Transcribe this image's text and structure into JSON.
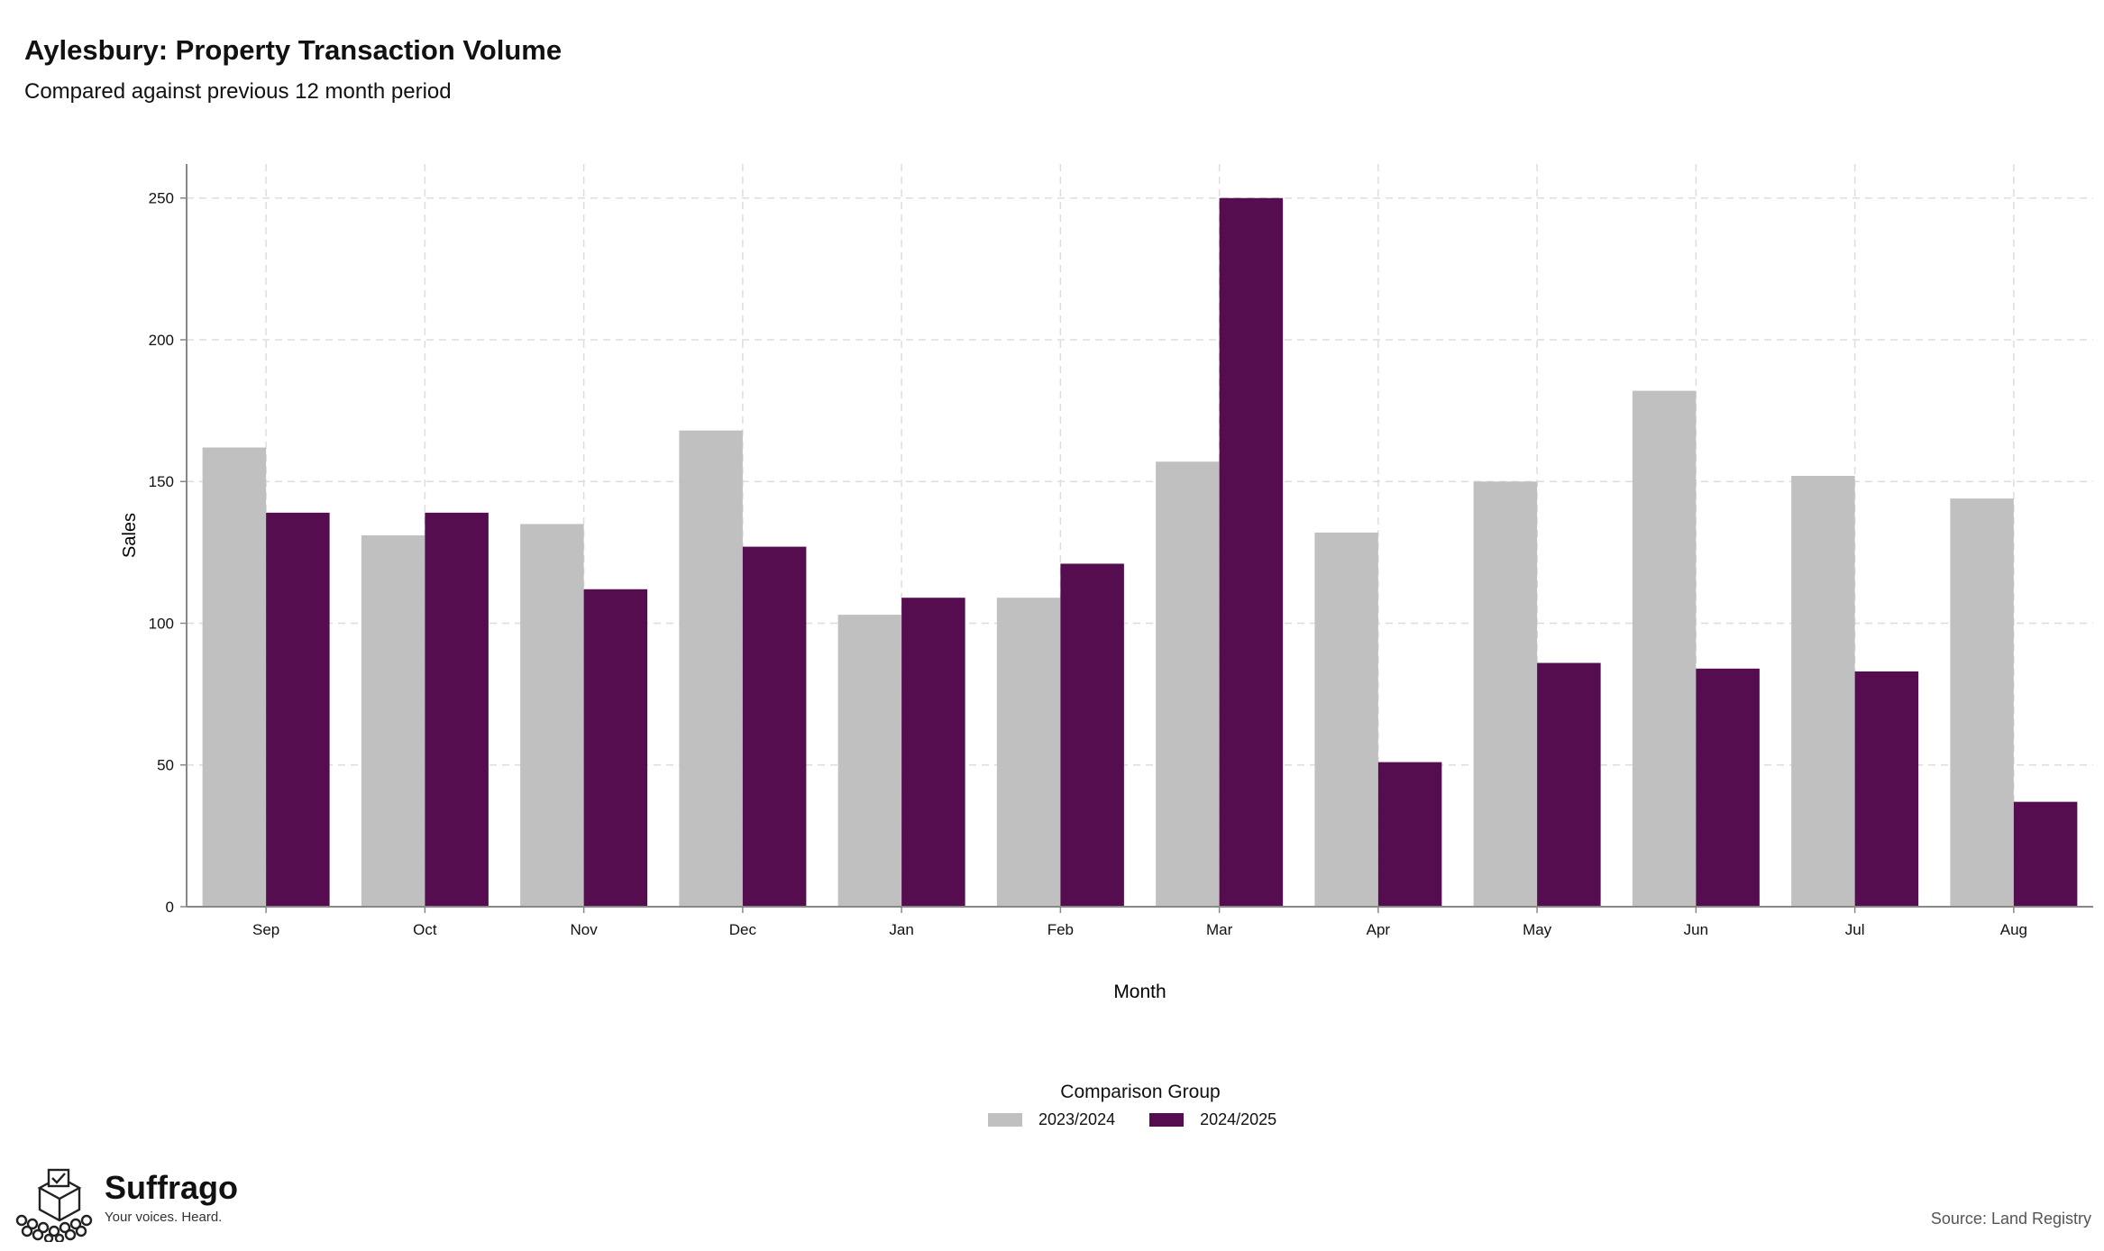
{
  "page": {
    "title": "Aylesbury: Property Transaction Volume",
    "subtitle": "Compared against previous 12 month period",
    "source": "Source: Land Registry",
    "brand": {
      "name": "Suffrago",
      "tagline": "Your voices. Heard.",
      "icon": "ballot-box-icon"
    }
  },
  "colors": {
    "prev": "#c0c0c0",
    "curr": "#560d50",
    "grid": "#dddddd",
    "axis": "#888888"
  },
  "chart_data": {
    "type": "bar",
    "title": "Aylesbury: Property Transaction Volume",
    "subtitle": "Compared against previous 12 month period",
    "xlabel": "Month",
    "ylabel": "Sales",
    "ylim": [
      0,
      262
    ],
    "yticks": [
      0,
      50,
      100,
      150,
      200,
      250
    ],
    "grid": true,
    "legend_title": "Comparison Group",
    "legend_position": "bottom",
    "categories": [
      "Sep",
      "Oct",
      "Nov",
      "Dec",
      "Jan",
      "Feb",
      "Mar",
      "Apr",
      "May",
      "Jun",
      "Jul",
      "Aug"
    ],
    "series": [
      {
        "name": "2023/2024",
        "values": [
          162,
          131,
          135,
          168,
          103,
          109,
          157,
          132,
          150,
          182,
          152,
          144
        ]
      },
      {
        "name": "2024/2025",
        "values": [
          139,
          139,
          112,
          127,
          109,
          121,
          250,
          51,
          86,
          84,
          83,
          37
        ]
      }
    ]
  }
}
